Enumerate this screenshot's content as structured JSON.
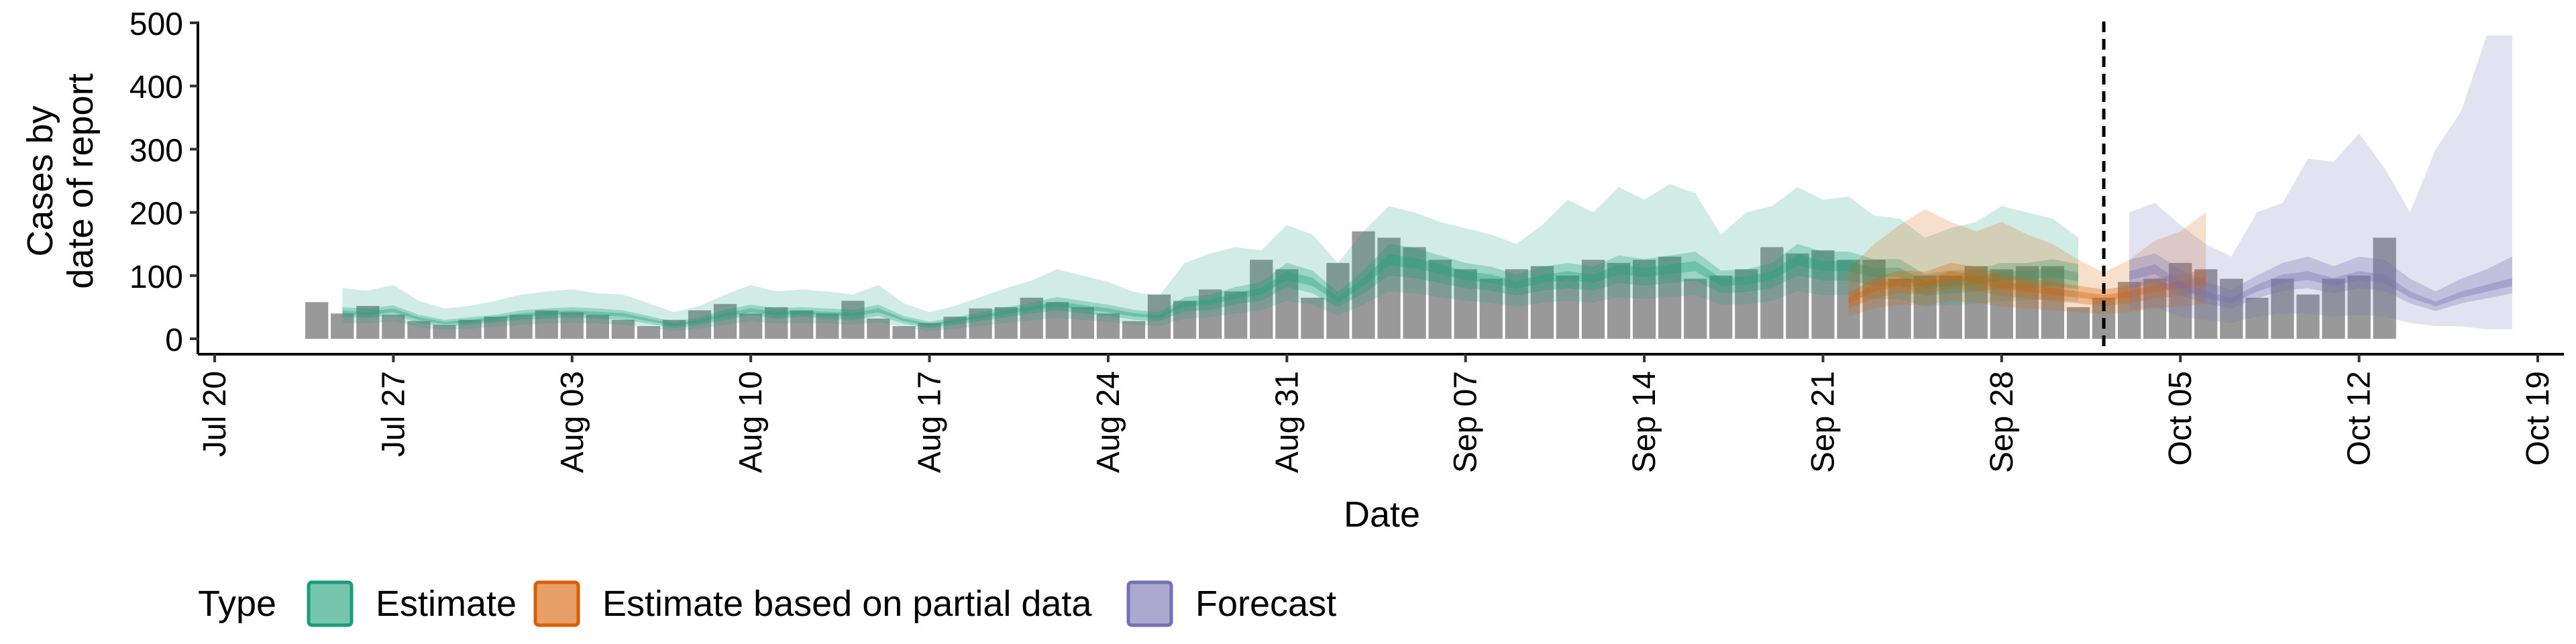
{
  "chart_data": {
    "type": "bar+area",
    "title": "",
    "xlabel": "Date",
    "ylabel_lines": [
      "Cases by",
      "date of report"
    ],
    "ylim": [
      0,
      500
    ],
    "y_ticks": [
      0,
      100,
      200,
      300,
      400,
      500
    ],
    "x_range": [
      "2020-07-20",
      "2020-10-19"
    ],
    "x_ticks": [
      {
        "date": "2020-07-20",
        "label": "Jul 20"
      },
      {
        "date": "2020-07-27",
        "label": "Jul 27"
      },
      {
        "date": "2020-08-03",
        "label": "Aug 03"
      },
      {
        "date": "2020-08-10",
        "label": "Aug 10"
      },
      {
        "date": "2020-08-17",
        "label": "Aug 17"
      },
      {
        "date": "2020-08-24",
        "label": "Aug 24"
      },
      {
        "date": "2020-08-31",
        "label": "Aug 31"
      },
      {
        "date": "2020-09-07",
        "label": "Sep 07"
      },
      {
        "date": "2020-09-14",
        "label": "Sep 14"
      },
      {
        "date": "2020-09-21",
        "label": "Sep 21"
      },
      {
        "date": "2020-09-28",
        "label": "Sep 28"
      },
      {
        "date": "2020-10-05",
        "label": "Oct 05"
      },
      {
        "date": "2020-10-12",
        "label": "Oct 12"
      },
      {
        "date": "2020-10-19",
        "label": "Oct 19"
      }
    ],
    "forecast_cutoff": "2020-10-02",
    "bars_color": "#999999",
    "reported_cases": {
      "start": "2020-07-24",
      "values": [
        58,
        40,
        52,
        38,
        28,
        22,
        30,
        35,
        38,
        45,
        42,
        38,
        30,
        20,
        30,
        45,
        55,
        40,
        50,
        45,
        40,
        60,
        32,
        20,
        25,
        35,
        48,
        50,
        65,
        58,
        50,
        40,
        28,
        70,
        60,
        78,
        75,
        125,
        110,
        65,
        120,
        170,
        160,
        145,
        125,
        110,
        95,
        110,
        115,
        100,
        125,
        120,
        125,
        130,
        95,
        100,
        110,
        145,
        135,
        140,
        125,
        125,
        95,
        100,
        100,
        115,
        110,
        115,
        115,
        50,
        65,
        90,
        95,
        120,
        110,
        95,
        65,
        95,
        70,
        95,
        100,
        160
      ]
    },
    "series": [
      {
        "name": "Estimate",
        "color": "#1b9e77",
        "start": "2020-07-25",
        "median": [
          42,
          40,
          45,
          32,
          25,
          28,
          32,
          38,
          40,
          42,
          40,
          38,
          30,
          22,
          28,
          38,
          45,
          40,
          42,
          40,
          38,
          45,
          30,
          22,
          28,
          35,
          42,
          48,
          55,
          50,
          45,
          38,
          35,
          55,
          58,
          68,
          75,
          100,
          90,
          62,
          90,
          125,
          120,
          110,
          100,
          95,
          85,
          95,
          100,
          95,
          110,
          105,
          110,
          115,
          90,
          92,
          100,
          125,
          115,
          115,
          105,
          105,
          85,
          90,
          92,
          100,
          100,
          105,
          98
        ],
        "q25": [
          35,
          33,
          38,
          25,
          20,
          22,
          26,
          30,
          32,
          34,
          32,
          30,
          24,
          17,
          22,
          30,
          38,
          32,
          35,
          32,
          30,
          36,
          24,
          17,
          22,
          28,
          34,
          40,
          45,
          40,
          36,
          30,
          28,
          44,
          45,
          55,
          60,
          82,
          72,
          50,
          72,
          100,
          96,
          88,
          80,
          76,
          68,
          76,
          80,
          76,
          88,
          84,
          88,
          92,
          72,
          74,
          80,
          100,
          92,
          92,
          84,
          84,
          68,
          72,
          74,
          80,
          80,
          84,
          78
        ],
        "q75": [
          50,
          48,
          53,
          38,
          30,
          34,
          38,
          45,
          48,
          50,
          48,
          45,
          36,
          27,
          34,
          46,
          54,
          48,
          50,
          48,
          46,
          54,
          36,
          27,
          34,
          42,
          50,
          57,
          66,
          60,
          54,
          46,
          42,
          66,
          70,
          82,
          90,
          120,
          108,
          74,
          108,
          150,
          144,
          132,
          120,
          114,
          102,
          114,
          120,
          114,
          132,
          126,
          132,
          138,
          108,
          110,
          120,
          150,
          138,
          138,
          126,
          126,
          102,
          108,
          110,
          120,
          120,
          126,
          118
        ],
        "q05": [
          25,
          24,
          28,
          18,
          14,
          16,
          19,
          22,
          24,
          25,
          24,
          22,
          18,
          12,
          16,
          22,
          28,
          24,
          25,
          24,
          22,
          26,
          18,
          12,
          16,
          20,
          25,
          29,
          33,
          30,
          27,
          22,
          20,
          32,
          34,
          40,
          45,
          60,
          54,
          37,
          54,
          75,
          72,
          66,
          60,
          57,
          51,
          57,
          60,
          57,
          66,
          63,
          66,
          69,
          54,
          55,
          60,
          75,
          69,
          69,
          63,
          63,
          51,
          54,
          55,
          60,
          60,
          63,
          58
        ],
        "q95": [
          80,
          76,
          85,
          60,
          48,
          52,
          60,
          70,
          75,
          78,
          72,
          70,
          56,
          42,
          52,
          70,
          85,
          75,
          78,
          75,
          70,
          85,
          56,
          42,
          52,
          66,
          80,
          92,
          110,
          100,
          90,
          74,
          68,
          120,
          135,
          145,
          140,
          180,
          165,
          120,
          170,
          210,
          200,
          185,
          175,
          165,
          150,
          180,
          220,
          200,
          240,
          220,
          245,
          230,
          165,
          200,
          210,
          240,
          220,
          225,
          195,
          190,
          160,
          175,
          185,
          210,
          200,
          190,
          160
        ]
      },
      {
        "name": "Estimate based on partial data",
        "color": "#d95f02",
        "start": "2020-09-22",
        "median": [
          60,
          80,
          90,
          88,
          100,
          95,
          85,
          80,
          75,
          70,
          65,
          70,
          80,
          85,
          92
        ],
        "q25": [
          48,
          64,
          72,
          70,
          80,
          76,
          68,
          64,
          60,
          56,
          52,
          56,
          64,
          68,
          74
        ],
        "q75": [
          72,
          96,
          108,
          106,
          120,
          114,
          102,
          96,
          90,
          84,
          78,
          84,
          96,
          102,
          110
        ],
        "q05": [
          35,
          48,
          54,
          53,
          60,
          57,
          51,
          48,
          45,
          42,
          39,
          42,
          48,
          51,
          55
        ],
        "q95": [
          110,
          150,
          180,
          205,
          185,
          170,
          185,
          165,
          150,
          125,
          105,
          125,
          155,
          170,
          200
        ]
      },
      {
        "name": "Forecast",
        "color": "#7570b3",
        "start": "2020-10-03",
        "median": [
          100,
          110,
          85,
          70,
          60,
          80,
          95,
          100,
          90,
          100,
          95,
          70,
          55,
          70,
          80,
          90
        ],
        "q25": [
          80,
          88,
          68,
          56,
          48,
          64,
          76,
          80,
          72,
          80,
          76,
          56,
          44,
          56,
          64,
          72
        ],
        "q75": [
          125,
          135,
          110,
          90,
          78,
          100,
          120,
          130,
          115,
          130,
          125,
          95,
          75,
          95,
          110,
          130
        ],
        "q05": [
          45,
          50,
          35,
          30,
          25,
          35,
          40,
          40,
          35,
          38,
          35,
          25,
          20,
          20,
          15,
          15
        ],
        "q95": [
          200,
          215,
          180,
          150,
          130,
          200,
          215,
          285,
          280,
          325,
          270,
          200,
          300,
          360,
          480,
          480
        ]
      }
    ],
    "legend": {
      "title": "Type",
      "position": "bottom",
      "items": [
        "Estimate",
        "Estimate based on partial data",
        "Forecast"
      ]
    }
  }
}
